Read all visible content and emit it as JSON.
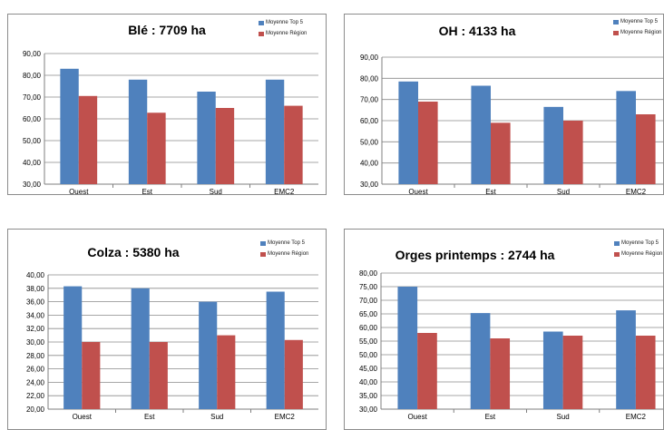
{
  "charts": [
    {
      "title": "Blé : 7709 ha",
      "chart_type": "bar",
      "categories": [
        "Ouest",
        "Est",
        "Sud",
        "EMC2"
      ],
      "ylim": [
        30,
        90
      ],
      "yticks": [
        "30,00",
        "40,00",
        "50,00",
        "60,00",
        "70,00",
        "80,00",
        "90,00"
      ],
      "tick_values": [
        30,
        40,
        50,
        60,
        70,
        80,
        90
      ],
      "series": [
        {
          "name": "Moyenne Top 5",
          "color": "#4f81bd",
          "values": [
            83.0,
            78.0,
            72.5,
            78.0
          ]
        },
        {
          "name": "Moyenne Région",
          "color": "#c0504d",
          "values": [
            70.5,
            62.8,
            65.0,
            66.0
          ]
        }
      ]
    },
    {
      "title": "OH : 4133 ha",
      "chart_type": "bar",
      "categories": [
        "Ouest",
        "Est",
        "Sud",
        "EMC2"
      ],
      "ylim": [
        30,
        90
      ],
      "yticks": [
        "30,00",
        "40,00",
        "50,00",
        "60,00",
        "70,00",
        "80,00",
        "90,00"
      ],
      "tick_values": [
        30,
        40,
        50,
        60,
        70,
        80,
        90
      ],
      "series": [
        {
          "name": "Moyenne Top 5",
          "color": "#4f81bd",
          "values": [
            78.5,
            76.5,
            66.5,
            74.0
          ]
        },
        {
          "name": "Moyenne Région",
          "color": "#c0504d",
          "values": [
            69.0,
            59.0,
            60.0,
            63.0
          ]
        }
      ]
    },
    {
      "title": "Colza :  5380 ha",
      "chart_type": "bar",
      "categories": [
        "Ouest",
        "Est",
        "Sud",
        "EMC2"
      ],
      "ylim": [
        20,
        40
      ],
      "yticks": [
        "20,00",
        "22,00",
        "24,00",
        "26,00",
        "28,00",
        "30,00",
        "32,00",
        "34,00",
        "36,00",
        "38,00",
        "40,00"
      ],
      "tick_values": [
        20,
        22,
        24,
        26,
        28,
        30,
        32,
        34,
        36,
        38,
        40
      ],
      "series": [
        {
          "name": "Moyenne Top 5",
          "color": "#4f81bd",
          "values": [
            38.3,
            38.0,
            36.0,
            37.5
          ]
        },
        {
          "name": "Moyenne Région",
          "color": "#c0504d",
          "values": [
            30.0,
            30.0,
            31.0,
            30.3
          ]
        }
      ]
    },
    {
      "title": "Orges printemps : 2744 ha",
      "chart_type": "bar",
      "categories": [
        "Ouest",
        "Est",
        "Sud",
        "EMC2"
      ],
      "ylim": [
        30,
        80
      ],
      "yticks": [
        "30,00",
        "35,00",
        "40,00",
        "45,00",
        "50,00",
        "55,00",
        "60,00",
        "65,00",
        "70,00",
        "75,00",
        "80,00"
      ],
      "tick_values": [
        30,
        35,
        40,
        45,
        50,
        55,
        60,
        65,
        70,
        75,
        80
      ],
      "series": [
        {
          "name": "Moyenne Top 5",
          "color": "#4f81bd",
          "values": [
            75.0,
            65.3,
            58.5,
            66.3
          ]
        },
        {
          "name": "Moyenne Région",
          "color": "#c0504d",
          "values": [
            58.0,
            56.0,
            57.0,
            57.0
          ]
        }
      ]
    }
  ]
}
